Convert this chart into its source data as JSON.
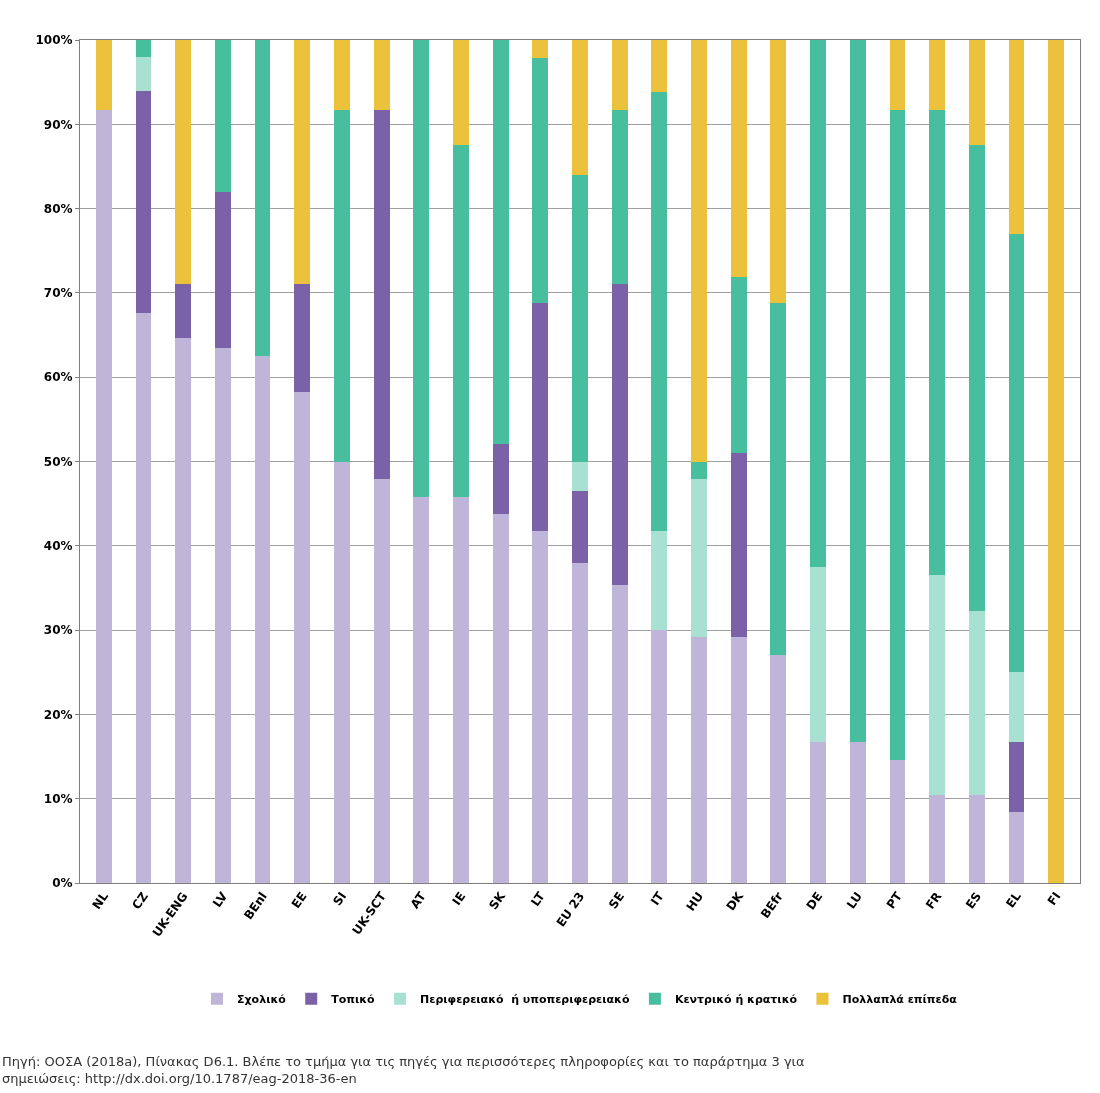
{
  "chart_data": {
    "type": "bar",
    "stacked": true,
    "categories": [
      "NL",
      "CZ",
      "UK-ENG",
      "LV",
      "BEnl",
      "EE",
      "SI",
      "UK-SCT",
      "AT",
      "IE",
      "SK",
      "LT",
      "EU 23",
      "SE",
      "IT",
      "HU",
      "DK",
      "BEfr",
      "DE",
      "LU",
      "PT",
      "FR",
      "ES",
      "EL",
      "FI"
    ],
    "series": [
      {
        "name": "Σχολικό",
        "color": "#bfb5d8",
        "values": [
          91.7,
          67.6,
          64.6,
          63.5,
          62.5,
          58.3,
          50,
          47.9,
          45.8,
          45.8,
          43.8,
          41.7,
          38,
          35.4,
          30,
          29.2,
          29.2,
          27.1,
          16.7,
          16.7,
          14.6,
          10.4,
          10.4,
          8.4,
          0
        ]
      },
      {
        "name": "Τοπικό",
        "color": "#7b62a8",
        "values": [
          0,
          26.3,
          6.4,
          18.5,
          0,
          12.7,
          0,
          43.8,
          0,
          0,
          8.3,
          27.1,
          8.5,
          35.6,
          0,
          0,
          21.8,
          0,
          0,
          0,
          0,
          0,
          0,
          8.3,
          0
        ]
      },
      {
        "name": "Περιφερειακό  ή υποπεριφερειακό",
        "color": "#a8e0d2",
        "values": [
          0,
          4.1,
          0,
          0,
          0,
          0,
          0,
          0,
          0,
          0,
          0,
          0,
          3.5,
          0,
          11.7,
          18.7,
          0,
          0,
          20.8,
          0,
          0,
          26.1,
          21.9,
          8.3,
          0
        ]
      },
      {
        "name": "Κεντρικό ή κρατικό",
        "color": "#47bf9f",
        "values": [
          0,
          2,
          0,
          18,
          37.5,
          0,
          41.7,
          0,
          54.2,
          41.7,
          47.9,
          29.1,
          34,
          20.7,
          52.1,
          2.1,
          20.9,
          41.7,
          62.5,
          83.3,
          77.1,
          55.2,
          55.2,
          52,
          0
        ]
      },
      {
        "name": "Πολλαπλά επίπεδα",
        "color": "#ecc23c",
        "values": [
          8.3,
          0,
          29,
          0,
          0,
          29,
          8.3,
          8.3,
          0,
          12.5,
          0,
          2.1,
          16,
          8.3,
          6.2,
          50,
          28.1,
          31.2,
          0,
          0,
          8.3,
          8.3,
          12.5,
          23,
          100
        ]
      }
    ],
    "ylim": [
      0,
      100
    ],
    "yticks": [
      {
        "value": 0,
        "label": "0%"
      },
      {
        "value": 10,
        "label": "10%"
      },
      {
        "value": 20,
        "label": "20%"
      },
      {
        "value": 30,
        "label": "30%"
      },
      {
        "value": 40,
        "label": "40%"
      },
      {
        "value": 50,
        "label": "50%"
      },
      {
        "value": 60,
        "label": "60%"
      },
      {
        "value": 70,
        "label": "70%"
      },
      {
        "value": 80,
        "label": "80%"
      },
      {
        "value": 90,
        "label": "90%"
      },
      {
        "value": 100,
        "label": "100%"
      }
    ],
    "grid": "y",
    "legend": "bottom",
    "annotations": [
      "Πηγή: ΟΟΣΑ (2018a), Πίνακας D6.1. Βλέπε το τμήμα για τις πηγές για περισσότερες πληροφορίες και το παράρτημα 3 για σημειώσεις: http://dx.doi.org/10.1787/eag-2018-36-en"
    ]
  }
}
